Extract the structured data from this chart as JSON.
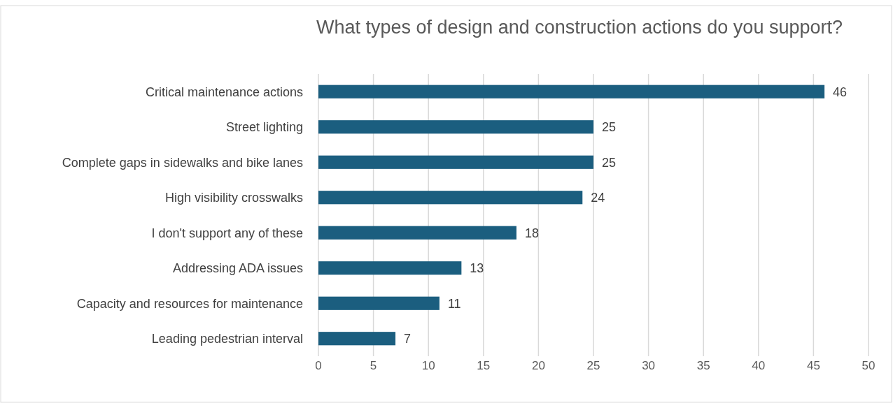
{
  "chart_data": {
    "type": "bar",
    "orientation": "horizontal",
    "title": "What types of design and construction actions do you support?",
    "categories": [
      "Critical maintenance actions",
      "Street lighting",
      "Complete gaps in sidewalks and bike lanes",
      "High visibility crosswalks",
      "I don't support any of these",
      "Addressing ADA issues",
      "Capacity and resources for maintenance",
      "Leading pedestrian interval"
    ],
    "values": [
      46,
      25,
      25,
      24,
      18,
      13,
      11,
      7
    ],
    "color": "#1b5e7f",
    "data_labels": true,
    "grid": "x",
    "xlim": [
      0,
      50
    ],
    "xticks": [
      0,
      5,
      10,
      15,
      20,
      25,
      30,
      35,
      40,
      45,
      50
    ]
  }
}
